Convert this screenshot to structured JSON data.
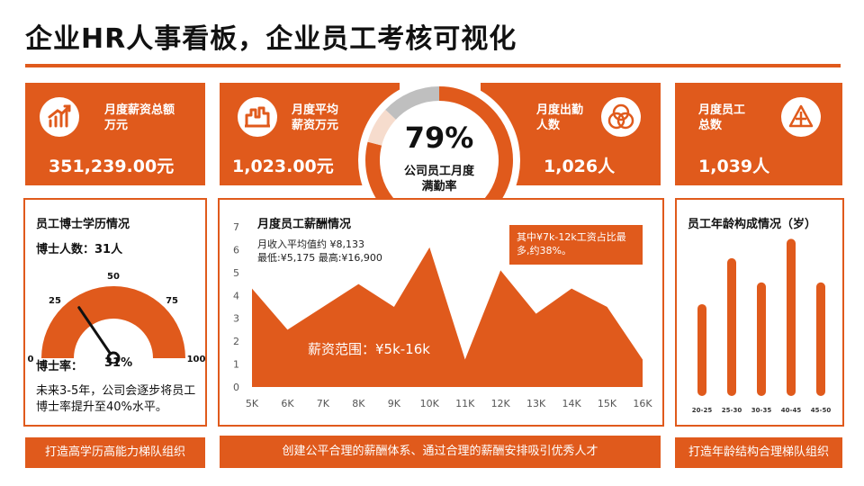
{
  "title": "企业HR人事看板，企业员工考核可视化",
  "colors": {
    "accent": "#e05a1c",
    "light": "#f6dccd",
    "grey": "#bfbfbf"
  },
  "kpis": [
    {
      "label": "月度薪资总额万元",
      "label_lines": [
        "月度薪资总额",
        "万元"
      ],
      "value": "351,239.00元",
      "icon": "growth-chart-icon"
    },
    {
      "label": "月度平均薪资万元",
      "label_lines": [
        "月度平均",
        "薪资万元"
      ],
      "value": "1,023.00元",
      "icon": "bar-chart-icon"
    },
    {
      "label": "月度出勤人数",
      "label_lines": [
        "月度出勤",
        "人数"
      ],
      "value": "1,026人",
      "icon": "venn-icon"
    },
    {
      "label": "月度员工总数",
      "label_lines": [
        "月度员工",
        "总数"
      ],
      "value": "1,039人",
      "icon": "triangle-logo-icon"
    }
  ],
  "satisfaction": {
    "percent": "79%",
    "percent_value": 79,
    "label_lines": [
      "公司员工月度",
      "满勤率"
    ],
    "segments": [
      79,
      8,
      13
    ]
  },
  "phd": {
    "title": "员工博士学历情况",
    "count_text": "博士人数：31人",
    "rate_label": "博士率：",
    "rate_value": "31%",
    "note": "未来3-5年，公司会逐步将员工博士率提升至40%水平。",
    "gauge_value": 31,
    "gauge_ticks": [
      "0",
      "25",
      "50",
      "75",
      "100"
    ],
    "gauge_tick_values": [
      0,
      25,
      50,
      75,
      100
    ]
  },
  "salary": {
    "title": "月度员工薪酬情况",
    "info_lines": [
      "月收入平均值约 ¥8,133",
      "最低:¥5,175 最高:¥16,900"
    ],
    "callout": "其中¥7k-12k工资占比最多,约38%。",
    "range_label": "薪资范围：¥5k-16k"
  },
  "age": {
    "title": "员工年龄构成情况（岁）"
  },
  "footer": {
    "left": "打造高学历高能力梯队组织",
    "center": "创建公平合理的薪酬体系、通过合理的薪酬安排吸引优秀人才",
    "right": "打造年龄结构合理梯队组织"
  },
  "chart_data": [
    {
      "type": "area",
      "title": "月度员工薪酬情况",
      "x": [
        "5K",
        "6K",
        "7K",
        "8K",
        "9K",
        "10K",
        "11K",
        "12K",
        "13K",
        "14K",
        "15K",
        "16K"
      ],
      "values": [
        4.3,
        2.5,
        3.5,
        4.5,
        3.5,
        6.1,
        1.2,
        5.1,
        3.2,
        4.3,
        3.5,
        1.2
      ],
      "ylim": [
        0,
        7
      ],
      "yticks": [
        "0",
        "1",
        "2",
        "3",
        "4",
        "5",
        "6",
        "7"
      ],
      "ytick_values": [
        0,
        1,
        2,
        3,
        4,
        5,
        6,
        7
      ]
    },
    {
      "type": "bar",
      "title": "员工年龄构成情况（岁）",
      "categories": [
        "20-25",
        "25-30",
        "30-35",
        "40-45",
        "45-50"
      ],
      "values": [
        3.8,
        5.7,
        4.7,
        6.5,
        4.7
      ],
      "ylim": [
        0,
        7
      ]
    }
  ]
}
